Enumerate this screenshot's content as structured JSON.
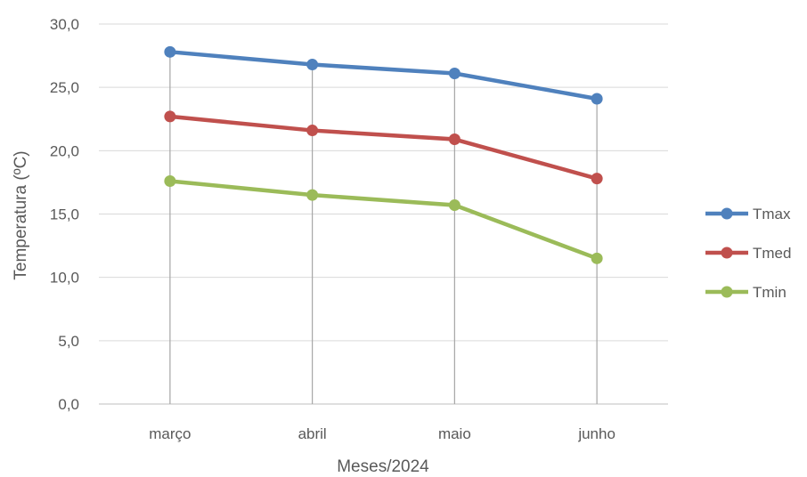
{
  "chart_data": {
    "type": "line",
    "categories": [
      "março",
      "abril",
      "maio",
      "junho"
    ],
    "series": [
      {
        "name": "Tmax",
        "values": [
          27.8,
          26.8,
          26.1,
          24.1
        ],
        "color": "#4F81BD"
      },
      {
        "name": "Tmed",
        "values": [
          22.7,
          21.6,
          20.9,
          17.8
        ],
        "color": "#C0504D"
      },
      {
        "name": "Tmin",
        "values": [
          17.6,
          16.5,
          15.7,
          11.5
        ],
        "color": "#9BBB59"
      }
    ],
    "y_ticks": [
      "0,0",
      "5,0",
      "10,0",
      "15,0",
      "20,0",
      "25,0",
      "30,0"
    ],
    "ylim": [
      0,
      30
    ],
    "xlabel": "Meses/2024",
    "ylabel": "Temperatura (ºC)",
    "grid": "horizontal",
    "drop_lines": true,
    "legend_position": "right"
  }
}
